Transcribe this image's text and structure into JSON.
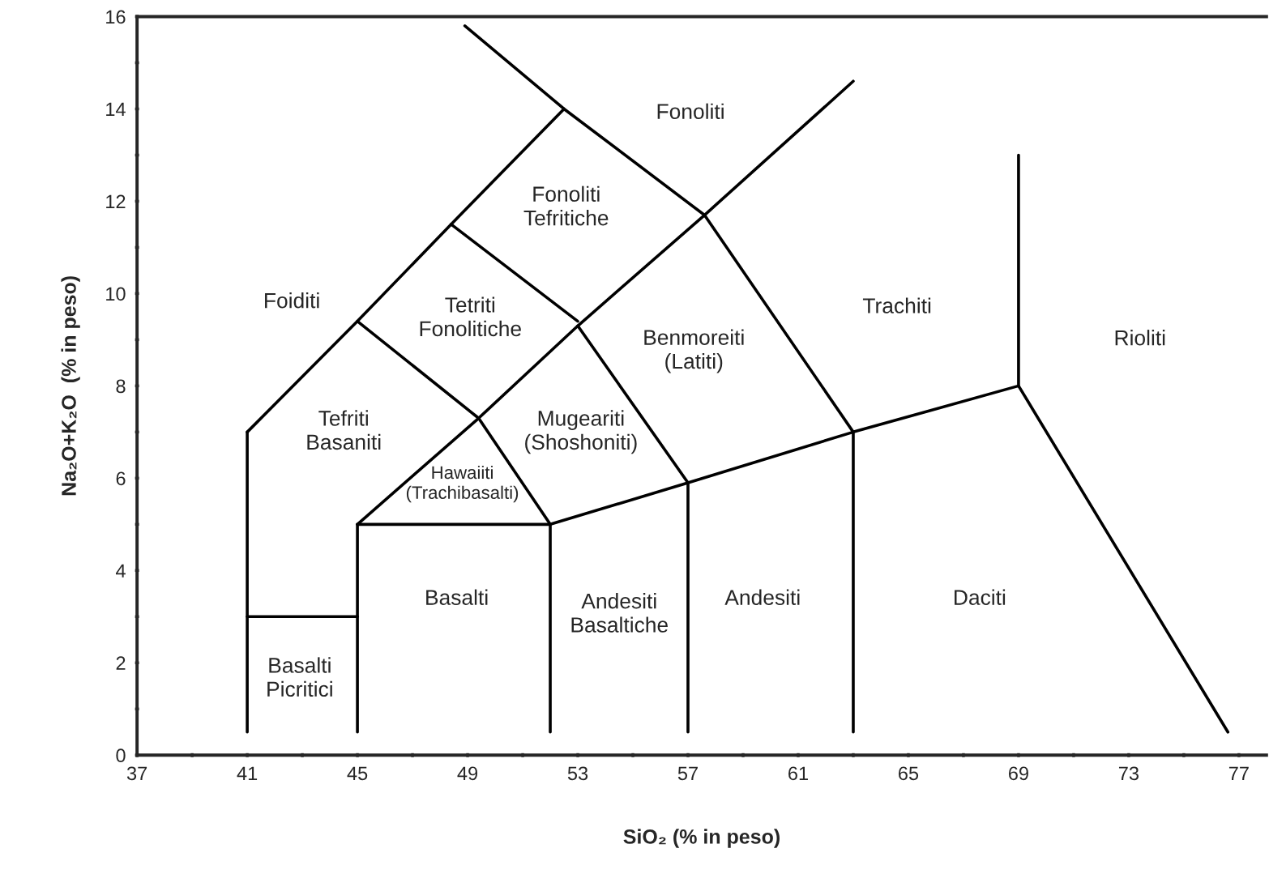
{
  "chart_data": {
    "type": "line",
    "xlabel": "SiO₂ (% in peso)",
    "ylabel": "Na₂O+K₂O  (% in peso)",
    "xlim": [
      37,
      78
    ],
    "ylim": [
      0,
      16
    ],
    "xticks": [
      37,
      {
        "value": 39,
        "label": null
      },
      41,
      {
        "value": 43,
        "label": null
      },
      45,
      {
        "value": 47,
        "label": null
      },
      49,
      {
        "value": 51,
        "label": null
      },
      53,
      {
        "value": 55,
        "label": null
      },
      57,
      {
        "value": 59,
        "label": null
      },
      61,
      {
        "value": 63,
        "label": null
      },
      65,
      {
        "value": 67,
        "label": null
      },
      69,
      {
        "value": 71,
        "label": null
      },
      73,
      {
        "value": 75,
        "label": null
      },
      77
    ],
    "yticks": [
      0,
      {
        "value": 1,
        "label": null
      },
      2,
      {
        "value": 3,
        "label": null
      },
      4,
      {
        "value": 5,
        "label": null
      },
      6,
      {
        "value": 7,
        "label": null
      },
      8,
      {
        "value": 9,
        "label": null
      },
      10,
      {
        "value": 11,
        "label": null
      },
      12,
      {
        "value": 13,
        "label": null
      },
      14,
      {
        "value": 15,
        "label": null
      },
      16
    ],
    "grid": false,
    "legend": false,
    "marker": "none",
    "line_style": "solid",
    "series": [
      {
        "color": "#000000",
        "x": [
          41,
          41
        ],
        "values": [
          0.5,
          7
        ]
      },
      {
        "color": "#000000",
        "x": [
          41,
          45
        ],
        "values": [
          3,
          3
        ]
      },
      {
        "color": "#000000",
        "x": [
          45,
          45
        ],
        "values": [
          0.5,
          5
        ]
      },
      {
        "color": "#000000",
        "x": [
          45,
          52,
          57,
          63,
          69
        ],
        "values": [
          5,
          5,
          5.9,
          7,
          8
        ]
      },
      {
        "color": "#000000",
        "x": [
          52,
          52
        ],
        "values": [
          0.5,
          5
        ]
      },
      {
        "color": "#000000",
        "x": [
          41,
          45,
          48.4,
          52.5
        ],
        "values": [
          7,
          9.4,
          11.5,
          14
        ]
      },
      {
        "color": "#000000",
        "x": [
          48.9,
          52.5,
          57.6,
          63,
          63
        ],
        "values": [
          15.8,
          14,
          11.7,
          7,
          0.5
        ]
      },
      {
        "color": "#000000",
        "x": [
          48.4,
          53
        ],
        "values": [
          11.5,
          9.4
        ]
      },
      {
        "color": "#000000",
        "x": [
          45,
          49.4,
          52
        ],
        "values": [
          9.4,
          7.3,
          5
        ]
      },
      {
        "color": "#000000",
        "x": [
          45,
          49.4,
          53,
          57.6,
          63
        ],
        "values": [
          5,
          7.3,
          9.3,
          11.7,
          14.6
        ]
      },
      {
        "color": "#000000",
        "x": [
          53,
          57,
          57
        ],
        "values": [
          9.3,
          5.9,
          0.5
        ]
      },
      {
        "color": "#000000",
        "x": [
          69,
          69,
          76.6
        ],
        "values": [
          13,
          8,
          0.5
        ]
      }
    ],
    "annotations": [
      "Fonoliti",
      "Fonoliti\nTefritiche",
      "Foiditi",
      "Tetriti\nFonolitiche",
      "Trachiti",
      "Benmoreiti\n(Latiti)",
      "Rioliti",
      "Tefriti\nBasaniti",
      "Mugeariti\n(Shoshoniti)",
      "Hawaiiti\n(Trachibasalti)",
      "Basalti",
      "Andesiti\nBasaltiche",
      "Andesiti",
      "Daciti",
      "Basalti\nPicritici"
    ]
  }
}
